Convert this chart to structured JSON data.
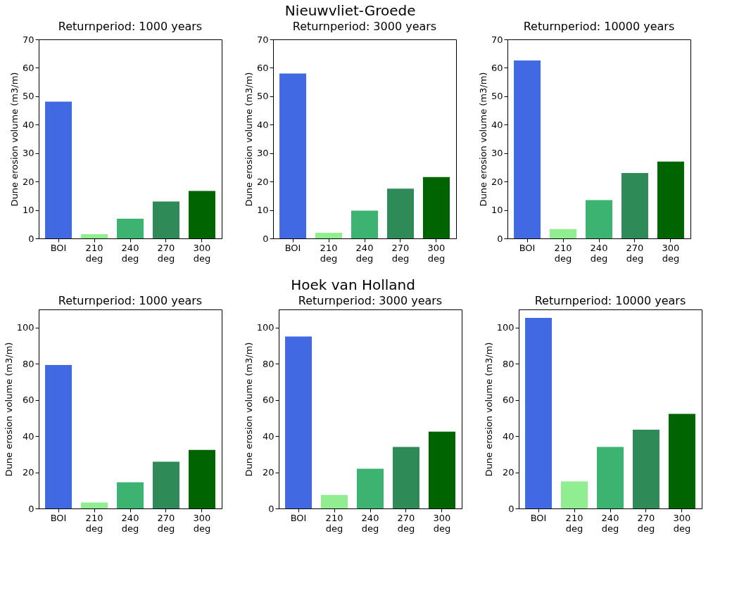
{
  "chart_data": [
    {
      "type": "bar",
      "title": "Returnperiod: 1000 years",
      "annotations": [
        "Nieuwvliet-Groede"
      ],
      "ylabel": "Dune erosion volume (m3/m)",
      "categories": [
        "BOI",
        "210 deg",
        "240 deg",
        "270 deg",
        "300 deg"
      ],
      "values": [
        48.1,
        1.5,
        6.9,
        13,
        16.7
      ],
      "colors": [
        "#4169e1",
        "#90ee90",
        "#3cb371",
        "#2e8b57",
        "#006400"
      ],
      "ylim": [
        0,
        70
      ],
      "yticks": [
        0,
        10,
        20,
        30,
        40,
        50,
        60,
        70
      ],
      "grid": false
    },
    {
      "type": "bar",
      "title": "Returnperiod: 3000 years",
      "ylabel": "Dune erosion volume (m3/m)",
      "categories": [
        "BOI",
        "210 deg",
        "240 deg",
        "270 deg",
        "300 deg"
      ],
      "values": [
        58,
        2,
        9.8,
        17.5,
        21.6
      ],
      "colors": [
        "#4169e1",
        "#90ee90",
        "#3cb371",
        "#2e8b57",
        "#006400"
      ],
      "ylim": [
        0,
        70
      ],
      "yticks": [
        0,
        10,
        20,
        30,
        40,
        50,
        60,
        70
      ],
      "grid": false
    },
    {
      "type": "bar",
      "title": "Returnperiod: 10000 years",
      "ylabel": "Dune erosion volume (m3/m)",
      "categories": [
        "BOI",
        "210 deg",
        "240 deg",
        "270 deg",
        "300 deg"
      ],
      "values": [
        62.6,
        3.3,
        13.5,
        23,
        27
      ],
      "colors": [
        "#4169e1",
        "#90ee90",
        "#3cb371",
        "#2e8b57",
        "#006400"
      ],
      "ylim": [
        0,
        70
      ],
      "yticks": [
        0,
        10,
        20,
        30,
        40,
        50,
        60,
        70
      ],
      "grid": false
    },
    {
      "type": "bar",
      "title": "Returnperiod: 1000 years",
      "annotations": [
        "Hoek van Holland"
      ],
      "ylabel": "Dune erosion volume (m3/m)",
      "categories": [
        "BOI",
        "210 deg",
        "240 deg",
        "270 deg",
        "300 deg"
      ],
      "values": [
        79.3,
        3.3,
        14.5,
        25.8,
        32.4
      ],
      "colors": [
        "#4169e1",
        "#90ee90",
        "#3cb371",
        "#2e8b57",
        "#006400"
      ],
      "ylim": [
        0,
        110
      ],
      "yticks": [
        0,
        20,
        40,
        60,
        80,
        100
      ],
      "grid": false
    },
    {
      "type": "bar",
      "title": "Returnperiod: 3000 years",
      "ylabel": "Dune erosion volume (m3/m)",
      "categories": [
        "BOI",
        "210 deg",
        "240 deg",
        "270 deg",
        "300 deg"
      ],
      "values": [
        95,
        7.5,
        22,
        34,
        42.5
      ],
      "colors": [
        "#4169e1",
        "#90ee90",
        "#3cb371",
        "#2e8b57",
        "#006400"
      ],
      "ylim": [
        0,
        110
      ],
      "yticks": [
        0,
        20,
        40,
        60,
        80,
        100
      ],
      "grid": false
    },
    {
      "type": "bar",
      "title": "Returnperiod: 10000 years",
      "ylabel": "Dune erosion volume (m3/m)",
      "categories": [
        "BOI",
        "210 deg",
        "240 deg",
        "270 deg",
        "300 deg"
      ],
      "values": [
        105.3,
        15,
        34,
        43.5,
        52.3
      ],
      "colors": [
        "#4169e1",
        "#90ee90",
        "#3cb371",
        "#2e8b57",
        "#006400"
      ],
      "ylim": [
        0,
        110
      ],
      "yticks": [
        0,
        20,
        40,
        60,
        80,
        100
      ],
      "grid": false
    }
  ]
}
